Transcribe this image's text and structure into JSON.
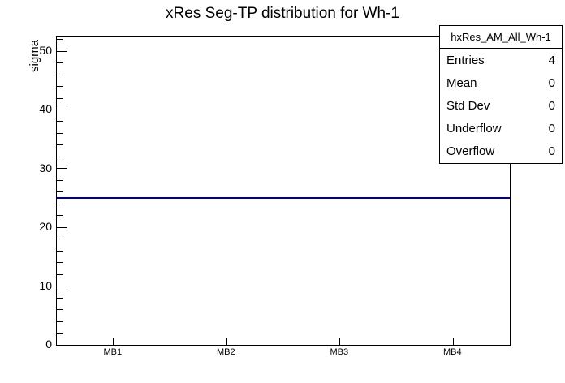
{
  "title": "xRes Seg-TP distribution for Wh-1",
  "colors": {
    "background": "#ffffff",
    "axis": "#000000",
    "series_line": "#000099"
  },
  "stats_box": {
    "header": "hxRes_AM_All_Wh-1",
    "rows": [
      {
        "label": "Entries",
        "value": "4"
      },
      {
        "label": "Mean",
        "value": "0"
      },
      {
        "label": "Std Dev",
        "value": "0"
      },
      {
        "label": "Underflow",
        "value": "0"
      },
      {
        "label": "Overflow",
        "value": "0"
      }
    ]
  },
  "chart_data": {
    "type": "line",
    "title": "xRes Seg-TP distribution for Wh-1",
    "categories": [
      "MB1",
      "MB2",
      "MB3",
      "MB4"
    ],
    "series": [
      {
        "name": "hxRes_AM_All_Wh-1",
        "values": [
          25,
          25,
          25,
          25
        ]
      }
    ],
    "xlabel": "",
    "ylabel": "sigma",
    "ylim": [
      0,
      52.5
    ],
    "yticks_major": [
      0,
      10,
      20,
      30,
      40,
      50
    ],
    "ytick_minor_step": 2,
    "grid": false,
    "legend_position": "stats-box-top-right"
  }
}
